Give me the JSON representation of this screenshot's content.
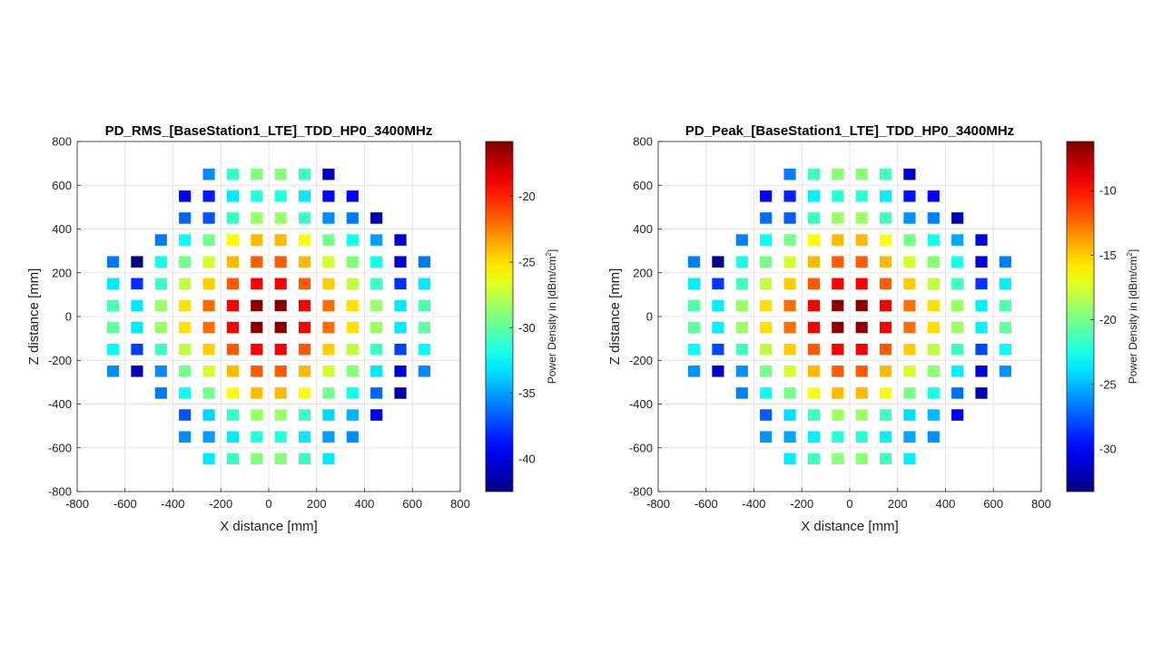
{
  "chart_data": [
    {
      "type": "heatmap",
      "title": "PD_RMS_[BaseStation1_LTE]_TDD_HP0_3400MHz",
      "xlabel": "X distance [mm]",
      "ylabel": "Z distance [mm]",
      "xlim": [
        -800,
        800
      ],
      "ylim": [
        -800,
        800
      ],
      "xticks": [
        "-800",
        "-600",
        "-400",
        "-200",
        "0",
        "200",
        "400",
        "600",
        "800"
      ],
      "yticks": [
        "800",
        "600",
        "400",
        "200",
        "0",
        "-200",
        "-400",
        "-600",
        "-800"
      ],
      "grid": true,
      "colorbar": {
        "label_main": "Power Density in [dBm/cm",
        "label_sup": "2",
        "label_end": "]",
        "range": [
          -42.5,
          -15.8
        ],
        "ticks": [
          "-20",
          "-25",
          "-30",
          "-35",
          "-40"
        ],
        "tick_values": [
          -20,
          -25,
          -30,
          -35,
          -40
        ]
      },
      "x": [
        -650,
        -550,
        -450,
        -350,
        -250,
        -150,
        -50,
        50,
        150,
        250,
        350,
        450,
        550,
        650
      ],
      "z": [
        650,
        550,
        450,
        350,
        250,
        150,
        50,
        -50,
        -150,
        -250,
        -350,
        -450,
        -550,
        -650
      ],
      "values": [
        [
          null,
          null,
          null,
          null,
          -35.5,
          -31,
          -29,
          -29,
          -31,
          -41,
          null,
          null,
          null,
          null
        ],
        [
          null,
          null,
          null,
          -39.5,
          -38.5,
          -33,
          -31.5,
          -31.5,
          -33,
          -39,
          -39.5,
          null,
          null,
          null
        ],
        [
          null,
          null,
          null,
          -36.5,
          -37,
          -31,
          -28.5,
          -28.5,
          -31,
          -35.5,
          -36,
          -41.5,
          null,
          null
        ],
        [
          null,
          null,
          -36,
          -32.5,
          -29.5,
          -26,
          -24,
          -24,
          -26,
          -29.5,
          -32,
          -35,
          -40.5,
          null
        ],
        [
          -36,
          -42.5,
          -32,
          -29.5,
          -27,
          -24,
          -21.5,
          -21.5,
          -24,
          -27,
          -29,
          -32,
          -40.5,
          -36
        ],
        [
          -33,
          -38,
          -31,
          -27.5,
          -24.5,
          -21.5,
          -19,
          -19,
          -21.5,
          -24.5,
          -27.5,
          -31,
          -38,
          -33
        ],
        [
          -30.5,
          -33,
          -28.5,
          -25,
          -22,
          -19,
          -16,
          -16,
          -19,
          -22,
          -25,
          -28.5,
          -33,
          -30.5
        ],
        [
          -30,
          -33,
          -28.5,
          -25,
          -22,
          -19,
          -16,
          -16,
          -19,
          -22,
          -25,
          -28.5,
          -33,
          -30
        ],
        [
          -32.5,
          -37.5,
          -31,
          -27.5,
          -24.5,
          -21.5,
          -19,
          -19,
          -21.5,
          -24.5,
          -27.5,
          -31,
          -37.5,
          -32.5
        ],
        [
          -35.5,
          -41,
          -35.5,
          -29.5,
          -27,
          -24,
          -21.5,
          -21.5,
          -24,
          -27,
          -29,
          -33,
          -40.5,
          -35.5
        ],
        [
          null,
          null,
          -36,
          -32.5,
          -29.5,
          -26,
          -24,
          -24,
          -26,
          -29.5,
          -32,
          -36.5,
          -41.5,
          null
        ],
        [
          null,
          null,
          null,
          -37,
          -33.5,
          -31,
          -28.5,
          -28.5,
          -31,
          -33.5,
          -34.5,
          -39.5,
          null,
          null
        ],
        [
          null,
          null,
          null,
          -35.5,
          -35,
          -33,
          -31.5,
          -31.5,
          -33,
          -35,
          -35.5,
          null,
          null,
          null
        ],
        [
          null,
          null,
          null,
          null,
          -33,
          -31,
          -29,
          -29,
          -31,
          -33,
          null,
          null,
          null,
          null
        ]
      ]
    },
    {
      "type": "heatmap",
      "title": "PD_Peak_[BaseStation1_LTE]_TDD_HP0_3400MHz",
      "xlabel": "X distance [mm]",
      "ylabel": "Z distance [mm]",
      "xlim": [
        -800,
        800
      ],
      "ylim": [
        -800,
        800
      ],
      "xticks": [
        "-800",
        "-600",
        "-400",
        "-200",
        "0",
        "200",
        "400",
        "600",
        "800"
      ],
      "yticks": [
        "800",
        "600",
        "400",
        "200",
        "0",
        "-200",
        "-400",
        "-600",
        "-800"
      ],
      "grid": true,
      "colorbar": {
        "label_main": "Power Density in [dBm/cm",
        "label_sup": "2",
        "label_end": "]",
        "range": [
          -33.3,
          -6.2
        ],
        "ticks": [
          "-10",
          "-15",
          "-20",
          "-25",
          "-30"
        ],
        "tick_values": [
          -10,
          -15,
          -20,
          -25,
          -30
        ]
      },
      "x": [
        -650,
        -550,
        -450,
        -350,
        -250,
        -150,
        -50,
        50,
        150,
        250,
        350,
        450,
        550,
        650
      ],
      "z": [
        650,
        550,
        450,
        350,
        250,
        150,
        50,
        -50,
        -150,
        -250,
        -350,
        -450,
        -550,
        -650
      ],
      "values": [
        [
          null,
          null,
          null,
          null,
          -26.5,
          -21.5,
          -19.5,
          -19.5,
          -21.5,
          -31.5,
          null,
          null,
          null,
          null
        ],
        [
          null,
          null,
          null,
          -30,
          -29,
          -23.5,
          -22,
          -22,
          -23.5,
          -29.5,
          -30,
          null,
          null,
          null
        ],
        [
          null,
          null,
          null,
          -27,
          -27.5,
          -21.5,
          -19,
          -19,
          -21.5,
          -26,
          -26.5,
          -32,
          null,
          null
        ],
        [
          null,
          null,
          -26.5,
          -23,
          -20,
          -16.5,
          -14.5,
          -14.5,
          -16.5,
          -20,
          -22.5,
          -25.5,
          -31,
          null
        ],
        [
          -26.5,
          -33,
          -22.5,
          -20,
          -17.5,
          -14.5,
          -12,
          -12,
          -14.5,
          -17.5,
          -19.5,
          -22.5,
          -31,
          -26.5
        ],
        [
          -23.5,
          -28.5,
          -21.5,
          -18,
          -15,
          -12,
          -9.5,
          -9.5,
          -12,
          -15,
          -18,
          -21.5,
          -28.5,
          -23.5
        ],
        [
          -21,
          -23.5,
          -19,
          -15.5,
          -12.5,
          -9.5,
          -6.5,
          -6.5,
          -9.5,
          -12.5,
          -15.5,
          -19,
          -23.5,
          -21
        ],
        [
          -20.5,
          -23.5,
          -19,
          -15.5,
          -12.5,
          -9.5,
          -6.5,
          -6.5,
          -9.5,
          -12.5,
          -15.5,
          -19,
          -23.5,
          -20.5
        ],
        [
          -23,
          -28,
          -21.5,
          -18,
          -15,
          -12,
          -9.5,
          -9.5,
          -12,
          -15,
          -18,
          -21.5,
          -28,
          -23
        ],
        [
          -26,
          -31.5,
          -26,
          -20,
          -17.5,
          -14.5,
          -12,
          -12,
          -14.5,
          -17.5,
          -19.5,
          -23.5,
          -31,
          -26
        ],
        [
          null,
          null,
          -26.5,
          -23,
          -20,
          -16.5,
          -14.5,
          -14.5,
          -16.5,
          -20,
          -22.5,
          -27,
          -32,
          null
        ],
        [
          null,
          null,
          null,
          -27.5,
          -24,
          -21.5,
          -19,
          -19,
          -21.5,
          -24,
          -25,
          -30,
          null,
          null
        ],
        [
          null,
          null,
          null,
          -26,
          -25.5,
          -23.5,
          -22,
          -22,
          -23.5,
          -25.5,
          -26,
          null,
          null,
          null
        ],
        [
          null,
          null,
          null,
          null,
          -23.5,
          -21.5,
          -19.5,
          -19.5,
          -21.5,
          -23.5,
          null,
          null,
          null,
          null
        ]
      ]
    }
  ]
}
